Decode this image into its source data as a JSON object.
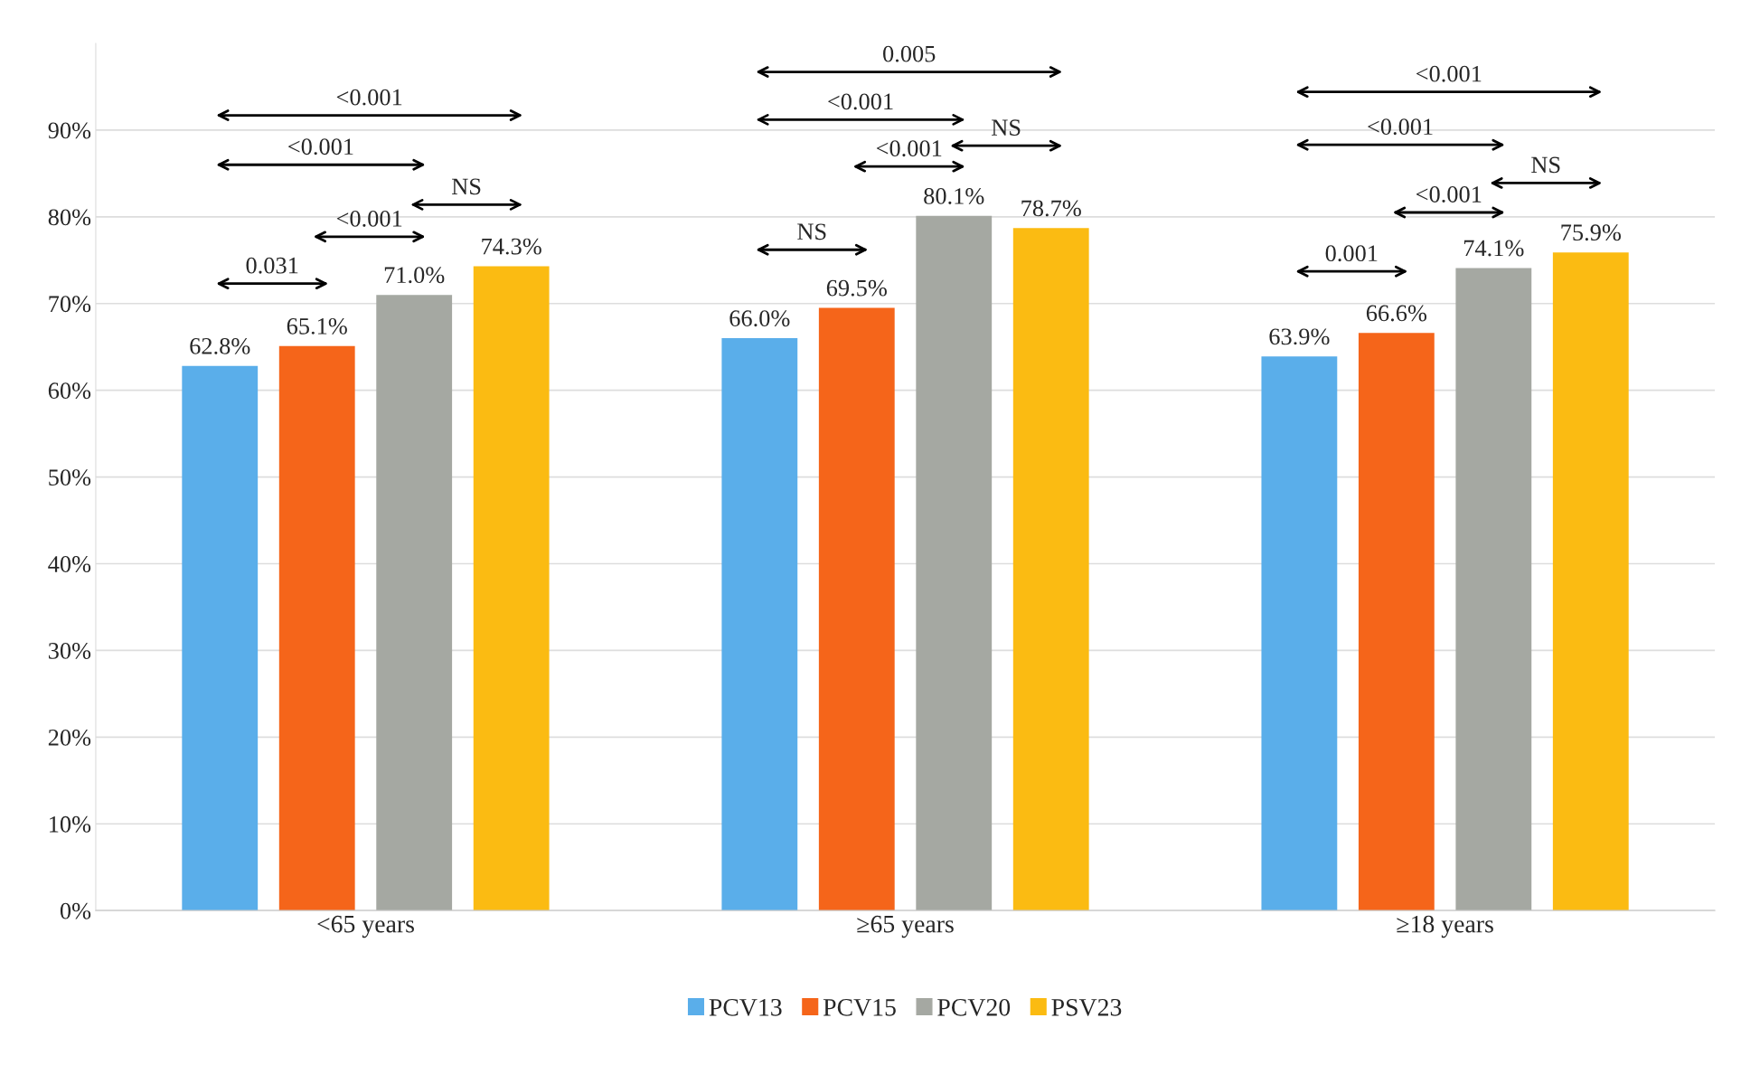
{
  "chart_data": {
    "type": "bar",
    "categories": [
      "<65 years",
      "≥65 years",
      "≥18 years"
    ],
    "series": [
      {
        "name": "PCV13",
        "color": "#5aaeea",
        "values": [
          62.8,
          66.0,
          63.9
        ],
        "value_labels": [
          "62.8%",
          "66.0%",
          "63.9%"
        ]
      },
      {
        "name": "PCV15",
        "color": "#f5651a",
        "values": [
          65.1,
          69.5,
          66.6
        ],
        "value_labels": [
          "65.1%",
          "69.5%",
          "66.6%"
        ]
      },
      {
        "name": "PCV20",
        "color": "#a5a8a2",
        "values": [
          71.0,
          80.1,
          74.1
        ],
        "value_labels": [
          "71.0%",
          "80.1%",
          "74.1%"
        ]
      },
      {
        "name": "PSV23",
        "color": "#fbbb12",
        "values": [
          74.3,
          78.7,
          75.9
        ],
        "value_labels": [
          "74.3%",
          "78.7%",
          "75.9%"
        ]
      }
    ],
    "ylim": [
      0,
      100
    ],
    "yticks": [
      {
        "value": 0,
        "label": "0%"
      },
      {
        "value": 10,
        "label": "10%"
      },
      {
        "value": 20,
        "label": "20%"
      },
      {
        "value": 30,
        "label": "30%"
      },
      {
        "value": 40,
        "label": "40%"
      },
      {
        "value": 50,
        "label": "50%"
      },
      {
        "value": 60,
        "label": "60%"
      },
      {
        "value": 70,
        "label": "70%"
      },
      {
        "value": 80,
        "label": "80%"
      },
      {
        "value": 90,
        "label": "90%"
      }
    ],
    "grid": "y",
    "legend": "bottom",
    "annotations": [
      "0.031",
      "<0.001",
      "NS",
      "<0.001",
      "<0.001",
      "NS",
      "<0.001",
      "NS",
      "<0.001",
      "0.005",
      "0.001",
      "<0.001",
      "NS",
      "<0.001",
      "<0.001"
    ]
  }
}
